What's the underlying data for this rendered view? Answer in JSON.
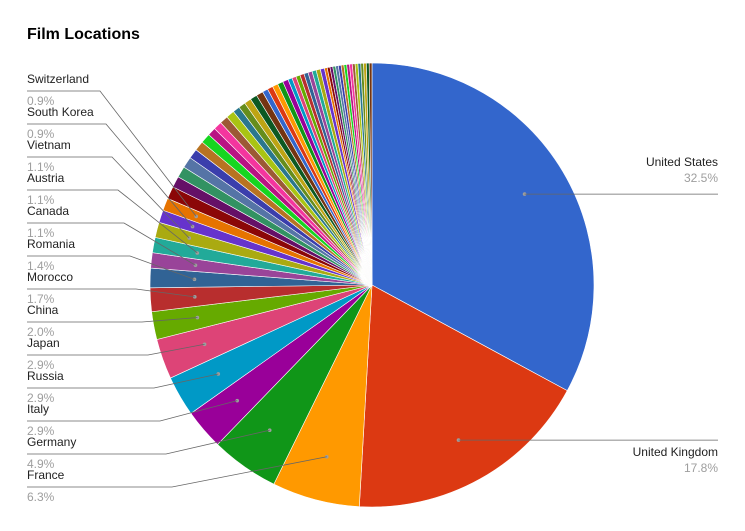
{
  "chart_data": {
    "type": "pie",
    "title": "Film Locations",
    "legend": "labeled-leaders",
    "slices": [
      {
        "label": "United States",
        "value": 32.5,
        "pct_label": "32.5%",
        "color": "#3366cc",
        "labeled": true
      },
      {
        "label": "United Kingdom",
        "value": 17.8,
        "pct_label": "17.8%",
        "color": "#dc3912",
        "labeled": true
      },
      {
        "label": "France",
        "value": 6.3,
        "pct_label": "6.3%",
        "color": "#ff9900",
        "labeled": true
      },
      {
        "label": "Germany",
        "value": 4.9,
        "pct_label": "4.9%",
        "color": "#109618",
        "labeled": true
      },
      {
        "label": "Italy",
        "value": 2.9,
        "pct_label": "2.9%",
        "color": "#990099",
        "labeled": true
      },
      {
        "label": "Russia",
        "value": 2.9,
        "pct_label": "2.9%",
        "color": "#0099c6",
        "labeled": true
      },
      {
        "label": "Japan",
        "value": 2.9,
        "pct_label": "2.9%",
        "color": "#dd4477",
        "labeled": true
      },
      {
        "label": "China",
        "value": 2.0,
        "pct_label": "2.0%",
        "color": "#66aa00",
        "labeled": true
      },
      {
        "label": "Morocco",
        "value": 1.7,
        "pct_label": "1.7%",
        "color": "#b82e2e",
        "labeled": true
      },
      {
        "label": "Romania",
        "value": 1.4,
        "pct_label": "1.4%",
        "color": "#316395",
        "labeled": true
      },
      {
        "label": "Canada",
        "value": 1.1,
        "pct_label": "1.1%",
        "color": "#994499",
        "labeled": true
      },
      {
        "label": "Austria",
        "value": 1.1,
        "pct_label": "1.1%",
        "color": "#22aa99",
        "labeled": true
      },
      {
        "label": "Vietnam",
        "value": 1.1,
        "pct_label": "1.1%",
        "color": "#aaaa11",
        "labeled": true
      },
      {
        "label": "South Korea",
        "value": 0.9,
        "pct_label": "0.9%",
        "color": "#6633cc",
        "labeled": true
      },
      {
        "label": "Switzerland",
        "value": 0.9,
        "pct_label": "0.9%",
        "color": "#e67300",
        "labeled": true
      },
      {
        "label": "",
        "value": 0.9,
        "pct_label": "",
        "color": "#8b0707",
        "labeled": false
      },
      {
        "label": "",
        "value": 0.8,
        "pct_label": "",
        "color": "#651067",
        "labeled": false
      },
      {
        "label": "",
        "value": 0.8,
        "pct_label": "",
        "color": "#329262",
        "labeled": false
      },
      {
        "label": "",
        "value": 0.8,
        "pct_label": "",
        "color": "#5574a6",
        "labeled": false
      },
      {
        "label": "",
        "value": 0.7,
        "pct_label": "",
        "color": "#3b3eac",
        "labeled": false
      },
      {
        "label": "",
        "value": 0.7,
        "pct_label": "",
        "color": "#b77322",
        "labeled": false
      },
      {
        "label": "",
        "value": 0.7,
        "pct_label": "",
        "color": "#16d620",
        "labeled": false
      },
      {
        "label": "",
        "value": 0.6,
        "pct_label": "",
        "color": "#b91383",
        "labeled": false
      },
      {
        "label": "",
        "value": 0.6,
        "pct_label": "",
        "color": "#f4359e",
        "labeled": false
      },
      {
        "label": "",
        "value": 0.6,
        "pct_label": "",
        "color": "#9c5935",
        "labeled": false
      },
      {
        "label": "",
        "value": 0.6,
        "pct_label": "",
        "color": "#a9c413",
        "labeled": false
      },
      {
        "label": "",
        "value": 0.5,
        "pct_label": "",
        "color": "#2a778d",
        "labeled": false
      },
      {
        "label": "",
        "value": 0.5,
        "pct_label": "",
        "color": "#668d1c",
        "labeled": false
      },
      {
        "label": "",
        "value": 0.5,
        "pct_label": "",
        "color": "#bea413",
        "labeled": false
      },
      {
        "label": "",
        "value": 0.5,
        "pct_label": "",
        "color": "#0c5922",
        "labeled": false
      },
      {
        "label": "",
        "value": 0.5,
        "pct_label": "",
        "color": "#743411",
        "labeled": false
      },
      {
        "label": "",
        "value": 0.4,
        "pct_label": "",
        "color": "#3366cc",
        "labeled": false
      },
      {
        "label": "",
        "value": 0.4,
        "pct_label": "",
        "color": "#dc3912",
        "labeled": false
      },
      {
        "label": "",
        "value": 0.4,
        "pct_label": "",
        "color": "#ff9900",
        "labeled": false
      },
      {
        "label": "",
        "value": 0.4,
        "pct_label": "",
        "color": "#109618",
        "labeled": false
      },
      {
        "label": "",
        "value": 0.4,
        "pct_label": "",
        "color": "#990099",
        "labeled": false
      },
      {
        "label": "",
        "value": 0.3,
        "pct_label": "",
        "color": "#0099c6",
        "labeled": false
      },
      {
        "label": "",
        "value": 0.3,
        "pct_label": "",
        "color": "#dd4477",
        "labeled": false
      },
      {
        "label": "",
        "value": 0.3,
        "pct_label": "",
        "color": "#66aa00",
        "labeled": false
      },
      {
        "label": "",
        "value": 0.3,
        "pct_label": "",
        "color": "#b82e2e",
        "labeled": false
      },
      {
        "label": "",
        "value": 0.3,
        "pct_label": "",
        "color": "#316395",
        "labeled": false
      },
      {
        "label": "",
        "value": 0.3,
        "pct_label": "",
        "color": "#994499",
        "labeled": false
      },
      {
        "label": "",
        "value": 0.3,
        "pct_label": "",
        "color": "#22aa99",
        "labeled": false
      },
      {
        "label": "",
        "value": 0.3,
        "pct_label": "",
        "color": "#aaaa11",
        "labeled": false
      },
      {
        "label": "",
        "value": 0.3,
        "pct_label": "",
        "color": "#6633cc",
        "labeled": false
      },
      {
        "label": "",
        "value": 0.2,
        "pct_label": "",
        "color": "#e67300",
        "labeled": false
      },
      {
        "label": "",
        "value": 0.2,
        "pct_label": "",
        "color": "#8b0707",
        "labeled": false
      },
      {
        "label": "",
        "value": 0.2,
        "pct_label": "",
        "color": "#651067",
        "labeled": false
      },
      {
        "label": "",
        "value": 0.2,
        "pct_label": "",
        "color": "#329262",
        "labeled": false
      },
      {
        "label": "",
        "value": 0.2,
        "pct_label": "",
        "color": "#5574a6",
        "labeled": false
      },
      {
        "label": "",
        "value": 0.2,
        "pct_label": "",
        "color": "#3b3eac",
        "labeled": false
      },
      {
        "label": "",
        "value": 0.2,
        "pct_label": "",
        "color": "#b77322",
        "labeled": false
      },
      {
        "label": "",
        "value": 0.2,
        "pct_label": "",
        "color": "#16d620",
        "labeled": false
      },
      {
        "label": "",
        "value": 0.2,
        "pct_label": "",
        "color": "#b91383",
        "labeled": false
      },
      {
        "label": "",
        "value": 0.2,
        "pct_label": "",
        "color": "#f4359e",
        "labeled": false
      },
      {
        "label": "",
        "value": 0.2,
        "pct_label": "",
        "color": "#9c5935",
        "labeled": false
      },
      {
        "label": "",
        "value": 0.2,
        "pct_label": "",
        "color": "#a9c413",
        "labeled": false
      },
      {
        "label": "",
        "value": 0.2,
        "pct_label": "",
        "color": "#2a778d",
        "labeled": false
      },
      {
        "label": "",
        "value": 0.2,
        "pct_label": "",
        "color": "#668d1c",
        "labeled": false
      },
      {
        "label": "",
        "value": 0.2,
        "pct_label": "",
        "color": "#bea413",
        "labeled": false
      },
      {
        "label": "",
        "value": 0.2,
        "pct_label": "",
        "color": "#0c5922",
        "labeled": false
      },
      {
        "label": "",
        "value": 0.2,
        "pct_label": "",
        "color": "#743411",
        "labeled": false
      }
    ]
  }
}
